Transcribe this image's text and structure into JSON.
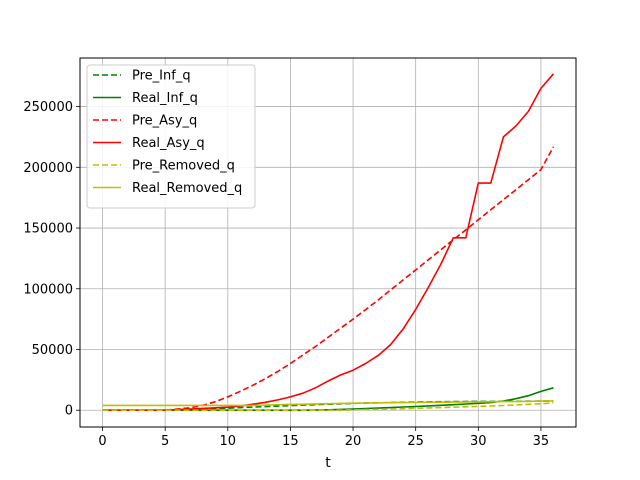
{
  "chart_data": {
    "type": "line",
    "xlabel": "t",
    "ylabel": "",
    "xlim": [
      -1.8,
      37.8
    ],
    "ylim": [
      -13800,
      290000
    ],
    "xticks": [
      0,
      5,
      10,
      15,
      20,
      25,
      30,
      35
    ],
    "yticks": [
      0,
      50000,
      100000,
      150000,
      200000,
      250000
    ],
    "grid": true,
    "legend_position": "upper-left",
    "x": [
      0,
      1,
      2,
      3,
      4,
      5,
      6,
      7,
      8,
      9,
      10,
      11,
      12,
      13,
      14,
      15,
      16,
      17,
      18,
      19,
      20,
      21,
      22,
      23,
      24,
      25,
      26,
      27,
      28,
      29,
      30,
      31,
      32,
      33,
      34,
      35,
      36
    ],
    "series": [
      {
        "name": "Pre_Inf_q",
        "color": "#008000",
        "style": "dashed",
        "values": [
          0,
          0,
          0,
          0,
          0,
          0,
          0,
          300,
          700,
          1200,
          1700,
          2200,
          2600,
          3000,
          3400,
          3800,
          4200,
          4600,
          5000,
          5300,
          5600,
          5900,
          6100,
          6300,
          6500,
          6700,
          6850,
          7000,
          7100,
          7200,
          7250,
          7300,
          7350,
          7400,
          7450,
          7500,
          7550
        ]
      },
      {
        "name": "Real_Inf_q",
        "color": "#008000",
        "style": "solid",
        "values": [
          0,
          0,
          0,
          0,
          0,
          0,
          0,
          0,
          0,
          0,
          0,
          0,
          0,
          0,
          0,
          0,
          0,
          100,
          400,
          700,
          1000,
          1400,
          1800,
          2200,
          2700,
          3100,
          3600,
          4100,
          4600,
          5100,
          5700,
          6300,
          7600,
          9500,
          12000,
          15500,
          18500
        ]
      },
      {
        "name": "Pre_Asy_q",
        "color": "#ff0000",
        "style": "dashed",
        "values": [
          0,
          0,
          0,
          0,
          0,
          0,
          1000,
          2000,
          4000,
          7000,
          11000,
          15500,
          20500,
          26000,
          32000,
          38500,
          45500,
          52500,
          60000,
          67500,
          75000,
          82800,
          90800,
          99000,
          107300,
          115500,
          123800,
          132000,
          140300,
          148500,
          156800,
          165000,
          173300,
          181500,
          189800,
          198000,
          217000
        ]
      },
      {
        "name": "Real_Asy_q",
        "color": "#ff0000",
        "style": "solid",
        "values": [
          0,
          0,
          0,
          0,
          0,
          0,
          500,
          1000,
          1500,
          2000,
          2500,
          3500,
          5000,
          6500,
          8500,
          11000,
          14000,
          18500,
          24000,
          29000,
          33000,
          38500,
          45000,
          54000,
          67000,
          83000,
          101000,
          120000,
          142000,
          142000,
          187000,
          187000,
          225000,
          234000,
          246000,
          265000,
          277000
        ]
      },
      {
        "name": "Pre_Removed_q",
        "color": "#bfbf00",
        "style": "dashed",
        "values": [
          0,
          0,
          0,
          0,
          0,
          0,
          0,
          0,
          0,
          0,
          0,
          0,
          0,
          0,
          0,
          0,
          0,
          0,
          0,
          0,
          300,
          500,
          800,
          1000,
          1300,
          1600,
          1900,
          2200,
          2500,
          2800,
          3200,
          3500,
          3900,
          4400,
          4900,
          5400,
          6000
        ]
      },
      {
        "name": "Real_Removed_q",
        "color": "#bfbf00",
        "style": "solid",
        "values": [
          4000,
          4000,
          4000,
          4000,
          4000,
          4000,
          4000,
          4000,
          4000,
          4000,
          4000,
          4000,
          4000,
          4300,
          4600,
          4800,
          5000,
          5200,
          5400,
          5600,
          5800,
          6000,
          6100,
          6200,
          6300,
          6400,
          6500,
          6600,
          6700,
          6800,
          6900,
          7000,
          7100,
          7200,
          7300,
          7500,
          7700
        ]
      }
    ]
  }
}
